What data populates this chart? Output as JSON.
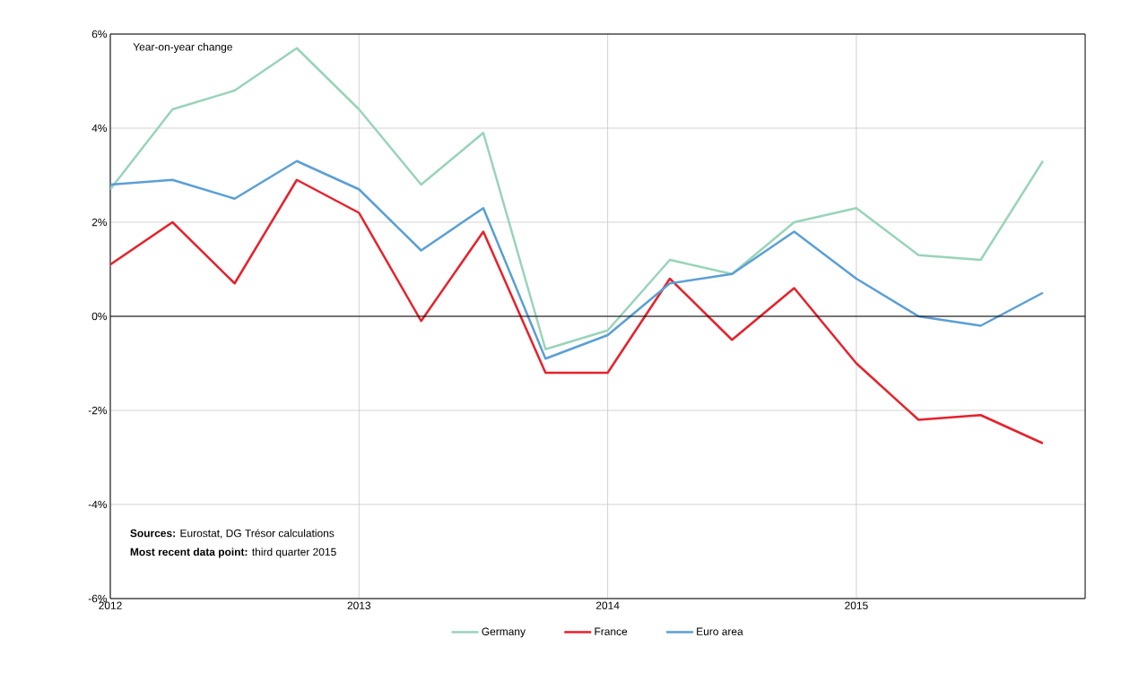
{
  "chart_data": {
    "type": "line",
    "x": [
      2012,
      2012.25,
      2012.5,
      2012.75,
      2013,
      2013.25,
      2013.5,
      2013.75,
      2014,
      2014.25,
      2014.5,
      2014.75,
      2015,
      2015.25,
      2015.5,
      2015.75
    ],
    "series": [
      {
        "name": "Germany",
        "color": "#98d4b8",
        "values": [
          2.7,
          4.4,
          4.8,
          5.7,
          4.4,
          2.8,
          3.9,
          -0.7,
          -0.3,
          1.2,
          0.9,
          2.0,
          2.3,
          1.3,
          1.2,
          3.3
        ]
      },
      {
        "name": "France",
        "color": "#e8202a",
        "values": [
          1.1,
          2.0,
          0.7,
          2.9,
          2.2,
          -0.1,
          1.8,
          -1.2,
          -1.2,
          0.8,
          -0.5,
          0.6,
          -1.0,
          -2.2,
          -2.1,
          -2.7
        ]
      },
      {
        "name": "Euro area",
        "color": "#5a9fd6",
        "values": [
          2.8,
          2.9,
          2.5,
          3.3,
          2.7,
          1.4,
          2.3,
          -0.9,
          -0.4,
          0.7,
          0.9,
          1.8,
          0.8,
          0.0,
          -0.2,
          0.5
        ]
      }
    ],
    "xlim": [
      2012,
      2015.92
    ],
    "xticks": [
      2012,
      2013,
      2014,
      2015
    ],
    "ylim": [
      -6,
      6
    ],
    "yticks": [
      {
        "value": -6,
        "label": "-6%"
      },
      {
        "value": -4,
        "label": "-4%"
      },
      {
        "value": -2,
        "label": "-2%"
      },
      {
        "value": 0,
        "label": "0%"
      },
      {
        "value": 2,
        "label": "2%"
      },
      {
        "value": 4,
        "label": "4%"
      },
      {
        "value": 6,
        "label": "6%"
      }
    ],
    "grid": true,
    "legend": "bottom",
    "line_style": "solid",
    "ref_lines": [
      {
        "axis": "y",
        "value": 0,
        "color": "#000000"
      }
    ],
    "annotations": [
      "Year-on-year change",
      "**Sources:** Eurostat, DG Trésor calculations",
      "**Most recent data point:** third quarter 2015"
    ]
  }
}
